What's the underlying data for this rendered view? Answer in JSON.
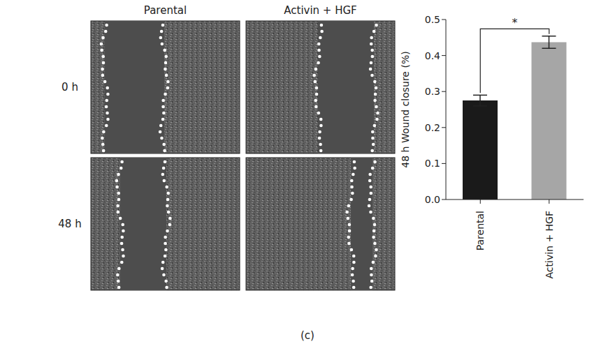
{
  "panel_label": "(c)",
  "images": {
    "columns": [
      "Parental",
      "Activin + HGF"
    ],
    "rows": [
      "0 h",
      "48 h"
    ]
  },
  "chart_data": {
    "type": "bar",
    "categories": [
      "Parental",
      "Activin + HGF"
    ],
    "values": [
      0.275,
      0.437
    ],
    "errors": [
      0.015,
      0.017
    ],
    "colors": [
      "#1a1a1a",
      "#a6a6a6"
    ],
    "ylabel": "48 h Wound closure (%)",
    "ylim": [
      0,
      0.5
    ],
    "yticks": [
      {
        "value": 0,
        "label": "0.0"
      },
      0.1,
      0.2,
      0.3,
      0.4,
      0.5
    ],
    "significance": "*",
    "grid": false
  }
}
